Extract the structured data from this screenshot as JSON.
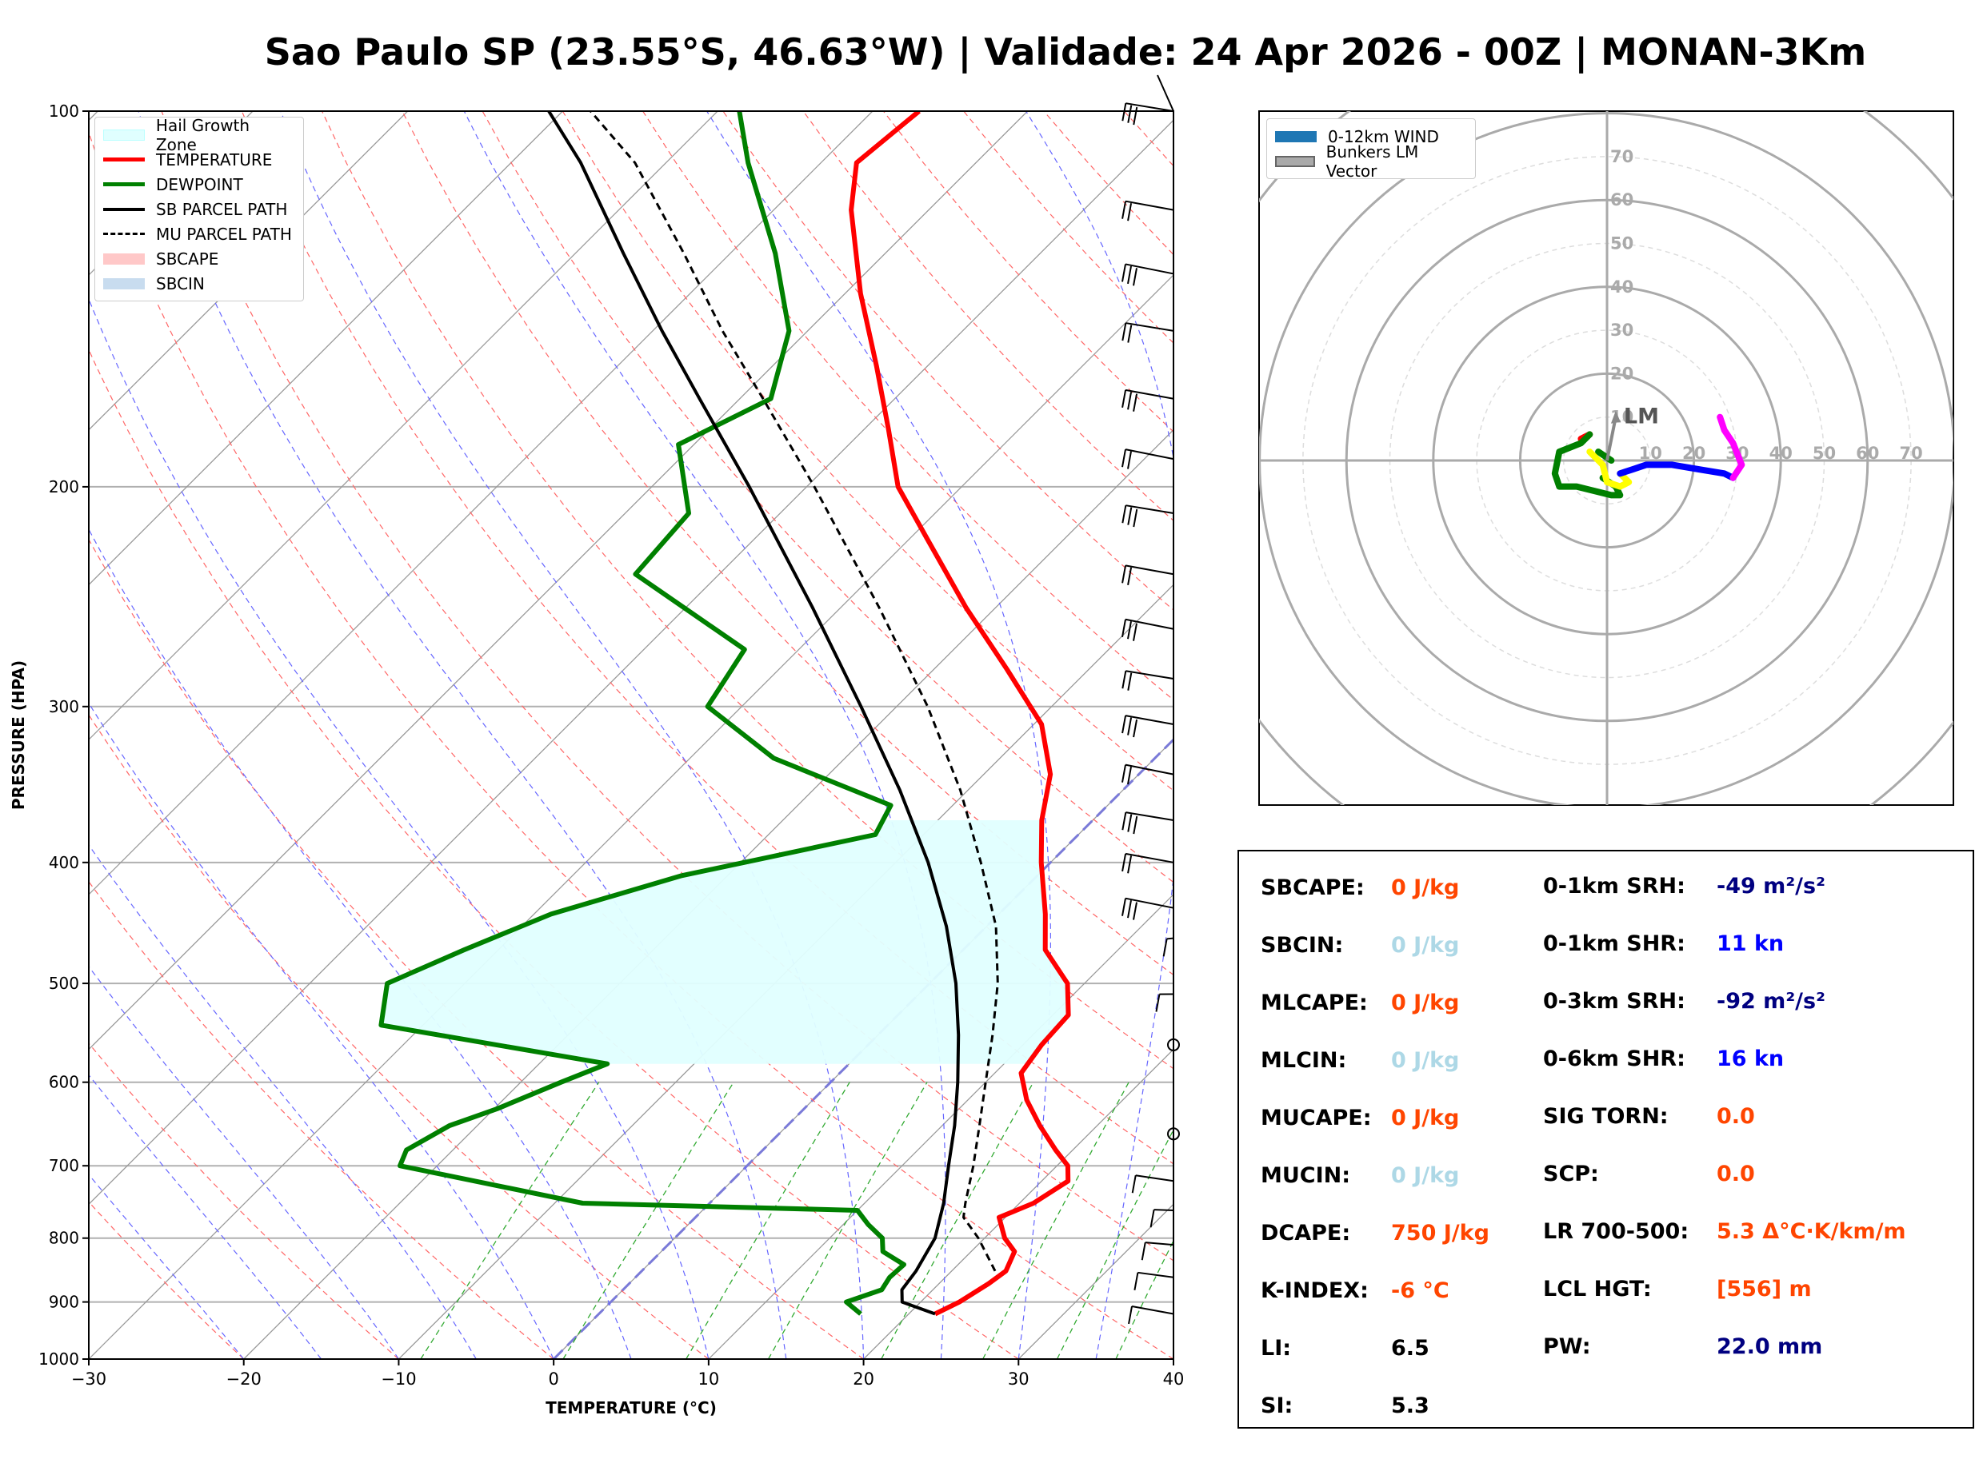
{
  "title": "Sao Paulo SP (23.55°S, 46.63°W) | Validade: 24 Apr 2026 - 00Z | MONAN-3Km",
  "colors": {
    "temperature": "#ff0000",
    "dewpoint": "#008000",
    "parcel": "#000000",
    "hail": "#e0ffff",
    "isotherm": "#808080",
    "dry_adiabat": "#ff6666",
    "moist_adiabat": "#6666ff",
    "mixing_ratio": "#33aa33",
    "hodo_magenta": "#ff00ff",
    "hodo_blue": "#0000ff",
    "hodo_yellow": "#ffff00",
    "hodo_green": "#008000",
    "hodo_red": "#ff0000"
  },
  "chart_data": [
    {
      "type": "line",
      "name": "skew-t",
      "xlabel": "TEMPERATURE (°C)",
      "ylabel": "PRESSURE (HPA)",
      "xlim": [
        -30,
        40
      ],
      "ylim": [
        1000,
        100
      ],
      "y_scale": "log",
      "skew": "45 degrees",
      "x_ticks": [
        "−30",
        "−20",
        "−10",
        "0",
        "10",
        "20",
        "30",
        "40"
      ],
      "y_ticks": [
        "100",
        "200",
        "300",
        "400",
        "500",
        "600",
        "700",
        "800",
        "900",
        "1000"
      ],
      "legend": {
        "position": "top-left",
        "entries": [
          "Hail Growth Zone",
          "TEMPERATURE",
          "DEWPOINT",
          "SB PARCEL PATH",
          "MU PARCEL PATH",
          "SBCAPE",
          "SBCIN"
        ]
      },
      "series": [
        {
          "name": "TEMPERATURE",
          "style": "solid",
          "points": [
            [
              920,
              21.7
            ],
            [
              900,
              22.5
            ],
            [
              870,
              23.2
            ],
            [
              850,
              23.5
            ],
            [
              820,
              22.8
            ],
            [
              800,
              21.3
            ],
            [
              770,
              19.6
            ],
            [
              750,
              20.9
            ],
            [
              720,
              21.7
            ],
            [
              700,
              20.7
            ],
            [
              680,
              18.9
            ],
            [
              650,
              16.3
            ],
            [
              620,
              13.8
            ],
            [
              590,
              11.7
            ],
            [
              560,
              11.2
            ],
            [
              530,
              11.0
            ],
            [
              500,
              8.9
            ],
            [
              470,
              5.3
            ],
            [
              440,
              3.0
            ],
            [
              400,
              -0.6
            ],
            [
              370,
              -3.3
            ],
            [
              340,
              -5.7
            ],
            [
              310,
              -9.5
            ],
            [
              280,
              -15.3
            ],
            [
              250,
              -21.9
            ],
            [
              220,
              -28.9
            ],
            [
              200,
              -34.1
            ],
            [
              180,
              -38.4
            ],
            [
              160,
              -43.3
            ],
            [
              140,
              -49.0
            ],
            [
              120,
              -55.0
            ],
            [
              110,
              -57.7
            ],
            [
              100,
              -57.0
            ]
          ]
        },
        {
          "name": "DEWPOINT",
          "style": "solid",
          "points": [
            [
              920,
              16.9
            ],
            [
              900,
              15.2
            ],
            [
              880,
              16.7
            ],
            [
              860,
              16.4
            ],
            [
              840,
              16.5
            ],
            [
              820,
              14.3
            ],
            [
              800,
              13.4
            ],
            [
              780,
              11.6
            ],
            [
              760,
              10.0
            ],
            [
              750,
              -8.2
            ],
            [
              700,
              -22.4
            ],
            [
              680,
              -23.0
            ],
            [
              650,
              -21.8
            ],
            [
              630,
              -19.8
            ],
            [
              600,
              -17.4
            ],
            [
              580,
              -15.6
            ],
            [
              540,
              -32.7
            ],
            [
              500,
              -35.0
            ],
            [
              470,
              -32.2
            ],
            [
              440,
              -28.9
            ],
            [
              410,
              -23.0
            ],
            [
              380,
              -13.1
            ],
            [
              360,
              -14.0
            ],
            [
              330,
              -24.6
            ],
            [
              300,
              -32.2
            ],
            [
              270,
              -33.5
            ],
            [
              235,
              -45.4
            ],
            [
              210,
              -45.9
            ],
            [
              185,
              -51.0
            ],
            [
              170,
              -48.0
            ],
            [
              150,
              -51.2
            ],
            [
              130,
              -57.1
            ],
            [
              110,
              -64.7
            ],
            [
              100,
              -68.6
            ]
          ]
        },
        {
          "name": "SB PARCEL PATH",
          "style": "solid",
          "points": [
            [
              920,
              21.7
            ],
            [
              900,
              18.8
            ],
            [
              880,
              18.0
            ],
            [
              850,
              17.7
            ],
            [
              800,
              16.8
            ],
            [
              750,
              15.1
            ],
            [
              700,
              13.0
            ],
            [
              650,
              10.8
            ],
            [
              600,
              8.2
            ],
            [
              550,
              5.2
            ],
            [
              500,
              1.7
            ],
            [
              450,
              -2.6
            ],
            [
              400,
              -7.9
            ],
            [
              350,
              -14.4
            ],
            [
              300,
              -22.3
            ],
            [
              250,
              -31.8
            ],
            [
              200,
              -43.7
            ],
            [
              170,
              -52.6
            ],
            [
              150,
              -59.4
            ],
            [
              130,
              -66.9
            ],
            [
              110,
              -75.5
            ],
            [
              100,
              -80.9
            ]
          ]
        },
        {
          "name": "MU PARCEL PATH",
          "style": "dashed",
          "points": [
            [
              850,
              22.8
            ],
            [
              800,
              19.6
            ],
            [
              770,
              17.3
            ],
            [
              750,
              16.5
            ],
            [
              700,
              14.6
            ],
            [
              650,
              12.4
            ],
            [
              600,
              10.0
            ],
            [
              550,
              7.4
            ],
            [
              500,
              4.4
            ],
            [
              450,
              0.6
            ],
            [
              400,
              -4.5
            ],
            [
              350,
              -10.5
            ],
            [
              300,
              -18.0
            ],
            [
              250,
              -27.5
            ],
            [
              200,
              -39.5
            ],
            [
              170,
              -48.5
            ],
            [
              150,
              -55.5
            ],
            [
              130,
              -63.0
            ],
            [
              110,
              -72.0
            ],
            [
              100,
              -78.2
            ]
          ]
        }
      ],
      "hail_growth_zone": {
        "top_hpa": 370,
        "bottom_hpa": 580
      },
      "wind_barbs_hpa": [
        920,
        860,
        810,
        760,
        720,
        660,
        560,
        510,
        460,
        435,
        400,
        370,
        340,
        310,
        285,
        260,
        235,
        210,
        190,
        170,
        150,
        135,
        120,
        100
      ]
    },
    {
      "type": "scatter",
      "name": "hodograph",
      "legend": {
        "position": "top-left",
        "entries": [
          "0-12km WIND",
          "Bunkers LM Vector"
        ]
      },
      "ring_labels": [
        "10",
        "20",
        "30",
        "40",
        "50",
        "60",
        "70"
      ],
      "ring_values_kn": [
        10,
        20,
        30,
        40,
        50,
        60,
        70
      ],
      "annotation": "LM",
      "lm_vector": [
        2,
        10
      ],
      "segments": [
        {
          "color": "red",
          "points": [
            [
              -6,
              5
            ],
            [
              -4,
              6
            ]
          ]
        },
        {
          "color": "green",
          "points": [
            [
              -4,
              6
            ],
            [
              -6,
              4
            ],
            [
              -11,
              2
            ],
            [
              -12,
              -3
            ],
            [
              -11,
              -6
            ],
            [
              -7,
              -6
            ],
            [
              -3,
              -7
            ],
            [
              1,
              -8
            ],
            [
              3,
              -8
            ],
            [
              2,
              -6
            ],
            [
              -1,
              -4
            ]
          ]
        },
        {
          "color": "green",
          "points": [
            [
              -2,
              2
            ],
            [
              1,
              0
            ]
          ]
        },
        {
          "color": "yellow",
          "points": [
            [
              -4,
              2
            ],
            [
              -1,
              -1
            ],
            [
              0,
              -5
            ],
            [
              3,
              -6
            ],
            [
              5,
              -5
            ],
            [
              3,
              -3
            ]
          ]
        },
        {
          "color": "blue",
          "points": [
            [
              3,
              -3
            ],
            [
              6,
              -2
            ],
            [
              9,
              -1
            ],
            [
              15,
              -1
            ],
            [
              21,
              -2
            ],
            [
              27,
              -3
            ],
            [
              29,
              -4
            ]
          ]
        },
        {
          "color": "magenta",
          "points": [
            [
              29,
              -4
            ],
            [
              31,
              -1
            ],
            [
              29,
              4
            ],
            [
              27,
              7
            ],
            [
              26,
              10
            ]
          ]
        }
      ]
    }
  ],
  "stats": {
    "left": [
      {
        "label": "SBCAPE:",
        "value": "0 J/kg",
        "color": "#ff4500"
      },
      {
        "label": "SBCIN:",
        "value": "0 J/kg",
        "color": "#add8e6"
      },
      {
        "label": "MLCAPE:",
        "value": "0 J/kg",
        "color": "#ff4500"
      },
      {
        "label": "MLCIN:",
        "value": "0 J/kg",
        "color": "#add8e6"
      },
      {
        "label": "MUCAPE:",
        "value": "0 J/kg",
        "color": "#ff4500"
      },
      {
        "label": "MUCIN:",
        "value": "0 J/kg",
        "color": "#add8e6"
      },
      {
        "label": "DCAPE:",
        "value": "750 J/kg",
        "color": "#ff4500"
      },
      {
        "label": "K-INDEX:",
        "value": "-6 °C",
        "color": "#ff4500"
      },
      {
        "label": "LI:",
        "value": "6.5",
        "color": "#000000"
      },
      {
        "label": "SI:",
        "value": "5.3",
        "color": "#000000"
      }
    ],
    "right": [
      {
        "label": "0-1km SRH:",
        "value": "-49 m²/s²",
        "color": "#000080"
      },
      {
        "label": "0-1km SHR:",
        "value": "11 kn",
        "color": "#0000ff"
      },
      {
        "label": "0-3km SRH:",
        "value": "-92 m²/s²",
        "color": "#000080"
      },
      {
        "label": "0-6km SHR:",
        "value": "16 kn",
        "color": "#0000ff"
      },
      {
        "label": "SIG TORN:",
        "value": "0.0",
        "color": "#ff4500"
      },
      {
        "label": "SCP:",
        "value": "0.0",
        "color": "#ff4500"
      },
      {
        "label": "LR 700-500:",
        "value": "5.3 Δ°C·K/km/m",
        "color": "#ff4500"
      },
      {
        "label": "LCL HGT:",
        "value": "[556] m",
        "color": "#ff4500"
      },
      {
        "label": "PW:",
        "value": "22.0 mm",
        "color": "#000080"
      }
    ]
  }
}
